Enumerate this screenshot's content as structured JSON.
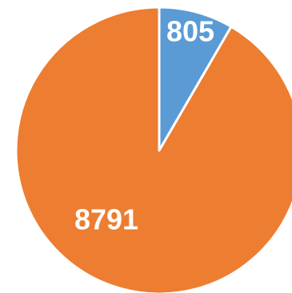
{
  "chart_data": {
    "type": "pie",
    "title": "",
    "start_angle_deg": 0,
    "direction": "clockwise",
    "slices": [
      {
        "label": "805",
        "value": 805,
        "color": "#5B9BD5"
      },
      {
        "label": "8791",
        "value": 8791,
        "color": "#ED7D31"
      }
    ],
    "slice_border_color": "#ffffff",
    "legend": "none"
  }
}
